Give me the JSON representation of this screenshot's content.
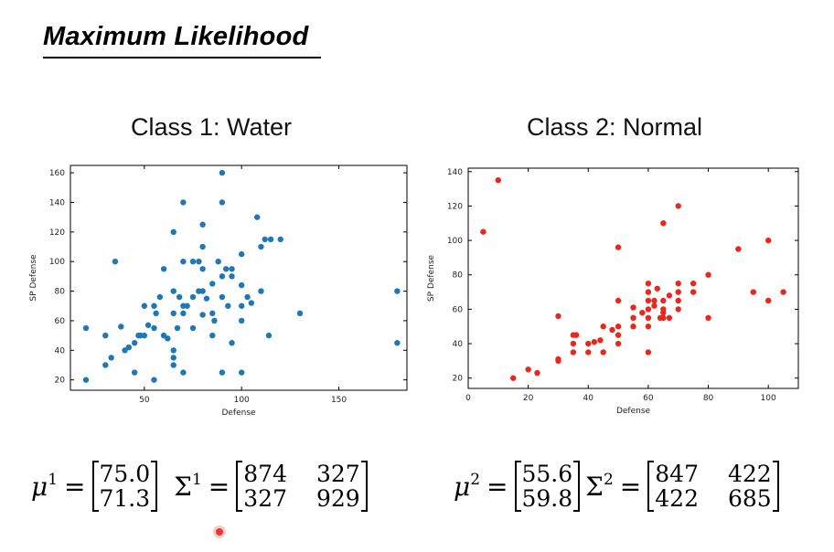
{
  "slide": {
    "title": "Maximum Likelihood"
  },
  "chart_data": [
    {
      "type": "scatter",
      "title": "Class 1: Water",
      "xlabel": "Defense",
      "ylabel": "SP Defense",
      "xlim": [
        12,
        185
      ],
      "ylim": [
        13,
        165
      ],
      "xticks": [
        50,
        100,
        150
      ],
      "yticks": [
        20,
        40,
        60,
        80,
        100,
        120,
        140,
        160
      ],
      "color": "#1f77b4",
      "points": [
        [
          20,
          55
        ],
        [
          20,
          20
        ],
        [
          30,
          50
        ],
        [
          30,
          30
        ],
        [
          33,
          35
        ],
        [
          35,
          100
        ],
        [
          38,
          56
        ],
        [
          40,
          40
        ],
        [
          42,
          42
        ],
        [
          45,
          45
        ],
        [
          45,
          25
        ],
        [
          47,
          50
        ],
        [
          48,
          50
        ],
        [
          50,
          70
        ],
        [
          50,
          50
        ],
        [
          52,
          57
        ],
        [
          55,
          70
        ],
        [
          55,
          20
        ],
        [
          55,
          55
        ],
        [
          56,
          65
        ],
        [
          58,
          76
        ],
        [
          60,
          50
        ],
        [
          60,
          95
        ],
        [
          62,
          48
        ],
        [
          65,
          120
        ],
        [
          65,
          80
        ],
        [
          65,
          65
        ],
        [
          65,
          40
        ],
        [
          65,
          35
        ],
        [
          65,
          30
        ],
        [
          67,
          55
        ],
        [
          68,
          76
        ],
        [
          70,
          140
        ],
        [
          70,
          100
        ],
        [
          70,
          70
        ],
        [
          70,
          65
        ],
        [
          70,
          25
        ],
        [
          72,
          70
        ],
        [
          75,
          100
        ],
        [
          75,
          76
        ],
        [
          75,
          55
        ],
        [
          78,
          80
        ],
        [
          78,
          100
        ],
        [
          80,
          125
        ],
        [
          80,
          110
        ],
        [
          80,
          95
        ],
        [
          80,
          80
        ],
        [
          80,
          64
        ],
        [
          82,
          75
        ],
        [
          85,
          85
        ],
        [
          85,
          65
        ],
        [
          85,
          50
        ],
        [
          86,
          60
        ],
        [
          88,
          100
        ],
        [
          90,
          160
        ],
        [
          90,
          140
        ],
        [
          90,
          90
        ],
        [
          90,
          76
        ],
        [
          90,
          25
        ],
        [
          92,
          95
        ],
        [
          93,
          70
        ],
        [
          95,
          95
        ],
        [
          95,
          90
        ],
        [
          95,
          45
        ],
        [
          100,
          105
        ],
        [
          100,
          84
        ],
        [
          100,
          70
        ],
        [
          100,
          60
        ],
        [
          100,
          25
        ],
        [
          103,
          76
        ],
        [
          105,
          72
        ],
        [
          108,
          130
        ],
        [
          110,
          110
        ],
        [
          110,
          80
        ],
        [
          112,
          115
        ],
        [
          114,
          50
        ],
        [
          115,
          115
        ],
        [
          120,
          115
        ],
        [
          130,
          65
        ],
        [
          180,
          80
        ],
        [
          180,
          45
        ]
      ]
    },
    {
      "type": "scatter",
      "title": "Class 2: Normal",
      "xlabel": "Defense",
      "ylabel": "SP Defense",
      "xlim": [
        0,
        110
      ],
      "ylim": [
        14,
        142
      ],
      "xticks": [
        0,
        20,
        40,
        60,
        80,
        100
      ],
      "yticks": [
        20,
        40,
        60,
        80,
        100,
        120,
        140
      ],
      "color": "#e8281e",
      "points": [
        [
          5,
          105
        ],
        [
          10,
          135
        ],
        [
          15,
          20
        ],
        [
          20,
          25
        ],
        [
          23,
          23
        ],
        [
          30,
          31
        ],
        [
          30,
          30
        ],
        [
          30,
          56
        ],
        [
          35,
          45
        ],
        [
          35,
          40
        ],
        [
          35,
          35
        ],
        [
          36,
          45
        ],
        [
          40,
          40
        ],
        [
          40,
          35
        ],
        [
          42,
          41
        ],
        [
          44,
          42
        ],
        [
          45,
          50
        ],
        [
          45,
          35
        ],
        [
          48,
          48
        ],
        [
          50,
          96
        ],
        [
          50,
          65
        ],
        [
          50,
          50
        ],
        [
          50,
          45
        ],
        [
          50,
          40
        ],
        [
          55,
          61
        ],
        [
          55,
          55
        ],
        [
          55,
          50
        ],
        [
          58,
          58
        ],
        [
          60,
          75
        ],
        [
          60,
          70
        ],
        [
          60,
          65
        ],
        [
          60,
          60
        ],
        [
          60,
          55
        ],
        [
          60,
          50
        ],
        [
          60,
          35
        ],
        [
          62,
          62
        ],
        [
          62,
          65
        ],
        [
          63,
          72
        ],
        [
          64,
          55
        ],
        [
          65,
          110
        ],
        [
          65,
          65
        ],
        [
          65,
          60
        ],
        [
          65,
          58
        ],
        [
          65,
          55
        ],
        [
          67,
          55
        ],
        [
          67,
          68
        ],
        [
          70,
          120
        ],
        [
          70,
          75
        ],
        [
          70,
          70
        ],
        [
          70,
          65
        ],
        [
          70,
          60
        ],
        [
          75,
          75
        ],
        [
          75,
          70
        ],
        [
          80,
          80
        ],
        [
          80,
          55
        ],
        [
          90,
          95
        ],
        [
          95,
          70
        ],
        [
          100,
          100
        ],
        [
          100,
          65
        ],
        [
          105,
          70
        ]
      ]
    }
  ],
  "equations": {
    "left": {
      "mu_symbol": "μ",
      "mu_index": "1",
      "mu": [
        "75.0",
        "71.3"
      ],
      "sigma_symbol": "Σ",
      "sigma_index": "1",
      "sigma": [
        [
          "874",
          "327"
        ],
        [
          "327",
          "929"
        ]
      ]
    },
    "right": {
      "mu_symbol": "μ",
      "mu_index": "2",
      "mu": [
        "55.6",
        "59.8"
      ],
      "sigma_symbol": "Σ",
      "sigma_index": "2",
      "sigma": [
        [
          "847",
          "422"
        ],
        [
          "422",
          "685"
        ]
      ]
    },
    "equals": "="
  }
}
